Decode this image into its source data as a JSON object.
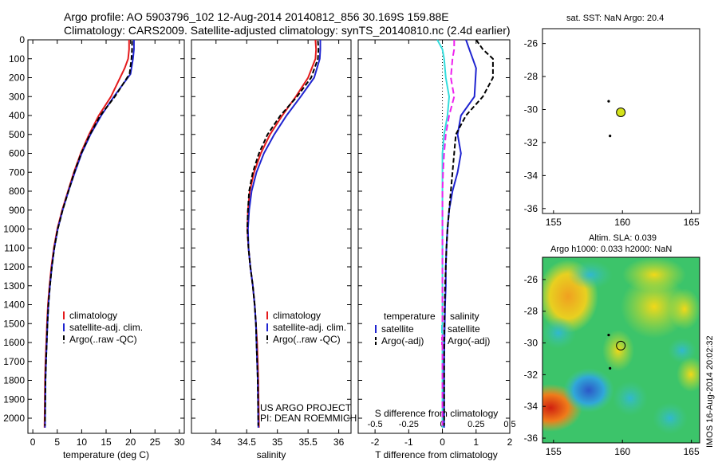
{
  "header": {
    "line1": "Argo profile: AO 5903796_102 12-Aug-2014 20140812_856 30.169S 159.88E",
    "line2": "Climatology: CARS2009. Satellite-adjusted climatology: synTS_20140810.nc (2.4d earlier)"
  },
  "colors": {
    "climatology": "#e41a1c",
    "satellite": "#1f24d0",
    "argo": "#000000",
    "satellite_s": "#33dddd",
    "argo_s": "#ee22ee",
    "marker": "#d4e21a"
  },
  "credits": {
    "project": "US ARGO PROJECT",
    "pi": "PI: DEAN ROEMMICH"
  },
  "timestamp": "IMOS 16-Aug-2014 20:02:32",
  "chart_data": [
    {
      "id": "temperature",
      "type": "line",
      "xlabel": "temperature (deg C)",
      "ylabel": "",
      "xlim": [
        -1,
        31
      ],
      "ylim": [
        2080,
        0
      ],
      "xticks": [
        0,
        5,
        10,
        15,
        20,
        25,
        30
      ],
      "yticks": [
        0,
        100,
        200,
        300,
        400,
        500,
        600,
        700,
        800,
        900,
        1000,
        1100,
        1200,
        1300,
        1400,
        1500,
        1600,
        1700,
        1800,
        1900,
        2000
      ],
      "legend": [
        "climatology",
        "satellite-adj. clim.",
        "Argo(..raw -QC)"
      ],
      "series": [
        {
          "name": "climatology",
          "color": "#e41a1c",
          "x": [
            19.7,
            19.7,
            19.5,
            18.8,
            16.0,
            13.5,
            11.5,
            9.8,
            8.4,
            7.2,
            6.0,
            5.0,
            4.3,
            3.8,
            3.4,
            3.1,
            2.9,
            2.75,
            2.6,
            2.5,
            2.4
          ],
          "y": [
            0,
            50,
            100,
            150,
            300,
            400,
            500,
            600,
            700,
            800,
            900,
            1000,
            1100,
            1200,
            1300,
            1400,
            1500,
            1600,
            1700,
            1800,
            2050
          ]
        },
        {
          "name": "satellite-adj. clim.",
          "color": "#1f24d0",
          "x": [
            20.7,
            20.7,
            20.5,
            20.0,
            16.6,
            14.0,
            11.8,
            10.0,
            8.6,
            7.3,
            6.1,
            5.1,
            4.4,
            3.9,
            3.5,
            3.2,
            3.0,
            2.85,
            2.7,
            2.6,
            2.5
          ],
          "y": [
            0,
            50,
            100,
            180,
            300,
            400,
            500,
            600,
            700,
            800,
            900,
            1000,
            1100,
            1200,
            1300,
            1400,
            1500,
            1600,
            1700,
            1800,
            2050
          ]
        },
        {
          "name": "Argo(..raw -QC)",
          "color": "#000000",
          "x": [
            20.3,
            20.3,
            20.2,
            19.8,
            16.8,
            13.8,
            11.7,
            9.9,
            8.5,
            7.3,
            6.1,
            5.1,
            4.4,
            3.9,
            3.5,
            3.2,
            3.0,
            2.85,
            2.7,
            2.6,
            2.5
          ],
          "y": [
            5,
            50,
            100,
            180,
            300,
            400,
            500,
            600,
            700,
            800,
            900,
            1000,
            1100,
            1200,
            1300,
            1400,
            1500,
            1600,
            1700,
            1800,
            2040
          ]
        }
      ]
    },
    {
      "id": "salinity",
      "type": "line",
      "xlabel": "salinity",
      "xlim": [
        33.6,
        36.2
      ],
      "ylim": [
        2080,
        0
      ],
      "xticks": [
        34,
        34.5,
        35,
        35.5,
        36
      ],
      "legend": [
        "climatology",
        "satellite-adj. clim.",
        "Argo(..raw -QC)"
      ],
      "series": [
        {
          "name": "climatology",
          "color": "#e41a1c",
          "x": [
            35.62,
            35.63,
            35.62,
            35.5,
            35.3,
            35.08,
            34.88,
            34.73,
            34.62,
            34.55,
            34.52,
            34.51,
            34.53,
            34.56,
            34.6,
            34.63,
            34.65,
            34.67,
            34.68,
            34.69,
            34.7
          ],
          "y": [
            0,
            50,
            100,
            200,
            300,
            400,
            500,
            600,
            700,
            800,
            900,
            1000,
            1100,
            1200,
            1300,
            1400,
            1500,
            1600,
            1700,
            1800,
            2050
          ]
        },
        {
          "name": "satellite-adj. clim.",
          "color": "#1f24d0",
          "x": [
            35.7,
            35.7,
            35.69,
            35.6,
            35.38,
            35.15,
            34.95,
            34.78,
            34.66,
            34.58,
            34.54,
            34.52,
            34.53,
            34.56,
            34.6,
            34.63,
            34.65,
            34.66,
            34.67,
            34.68,
            34.69
          ],
          "y": [
            0,
            50,
            100,
            200,
            300,
            400,
            500,
            600,
            700,
            800,
            900,
            1000,
            1100,
            1200,
            1300,
            1400,
            1500,
            1600,
            1700,
            1800,
            2050
          ]
        },
        {
          "name": "Argo(..raw -QC)",
          "color": "#000000",
          "x": [
            35.66,
            35.67,
            35.66,
            35.55,
            35.32,
            35.05,
            34.84,
            34.7,
            34.6,
            34.54,
            34.52,
            34.51,
            34.53,
            34.56,
            34.6,
            34.63,
            34.65,
            34.66,
            34.67,
            34.68,
            34.69
          ],
          "y": [
            5,
            50,
            100,
            200,
            300,
            400,
            500,
            600,
            700,
            800,
            900,
            1000,
            1100,
            1200,
            1300,
            1400,
            1500,
            1600,
            1700,
            1800,
            2040
          ]
        }
      ]
    },
    {
      "id": "difference",
      "type": "line",
      "xlabel": "T difference from climatology",
      "x2label": "S difference from climatology",
      "xlim": [
        -2.5,
        2
      ],
      "ylim": [
        2080,
        0
      ],
      "xticks": [
        -2,
        -1,
        0,
        1,
        2
      ],
      "xticklabels": [
        "-2",
        "-1",
        "0",
        "1",
        "2"
      ],
      "x2ticks": [
        -2,
        -1,
        0,
        1,
        2
      ],
      "x2ticklabels": [
        "-0.5",
        "-0.25",
        "0",
        "0.25",
        "0.5"
      ],
      "legend_groups": [
        {
          "title": "temperature",
          "items": [
            "satellite",
            "Argo(-adj)"
          ]
        },
        {
          "title": "salinity",
          "items": [
            "satellite",
            "Argo(-adj)"
          ]
        }
      ],
      "series": [
        {
          "name": "satellite",
          "group": "temperature",
          "color": "#1f24d0",
          "x": [
            0.7,
            0.8,
            0.9,
            1.0,
            0.95,
            0.55,
            0.45,
            0.55,
            0.45,
            0.3,
            0.2,
            0.15,
            0.12,
            0.1,
            0.1,
            0.08,
            0.07,
            0.06,
            0.05,
            0.05,
            0.05
          ],
          "y": [
            0,
            50,
            100,
            150,
            300,
            400,
            500,
            600,
            700,
            800,
            900,
            1000,
            1100,
            1200,
            1300,
            1400,
            1500,
            1600,
            1700,
            1800,
            2050
          ]
        },
        {
          "name": "Argo(-adj)",
          "group": "temperature",
          "color": "#000000",
          "x": [
            1.0,
            1.2,
            1.5,
            1.5,
            1.2,
            0.7,
            0.4,
            0.35,
            0.3,
            0.25,
            0.2,
            0.15,
            0.12,
            0.1,
            0.08,
            0.07,
            0.06,
            0.05,
            0.05,
            0.05
          ],
          "y": [
            0,
            50,
            100,
            200,
            300,
            400,
            500,
            600,
            700,
            800,
            900,
            1000,
            1100,
            1200,
            1300,
            1400,
            1500,
            1600,
            1700,
            2040
          ]
        },
        {
          "name": "satellite",
          "group": "salinity",
          "color": "#33dddd",
          "x": [
            -0.15,
            0.0,
            0.05,
            0.1,
            0.2,
            0.15,
            0.05,
            0.0,
            0.0,
            0.0,
            0.0,
            0.0,
            0.0,
            0.0,
            0.0,
            0.0,
            0.0,
            0.0,
            0.0,
            0.0,
            0.0
          ],
          "y": [
            0,
            50,
            100,
            200,
            300,
            400,
            500,
            600,
            700,
            800,
            900,
            1000,
            1100,
            1200,
            1300,
            1400,
            1500,
            1600,
            1700,
            1800,
            2050
          ]
        },
        {
          "name": "Argo(-adj)",
          "group": "salinity",
          "color": "#ee22ee",
          "x": [
            0.35,
            0.35,
            0.3,
            0.25,
            0.35,
            0.2,
            0.1,
            0.05,
            0.02,
            0.0,
            0.0,
            0.0,
            0.0,
            0.0,
            0.0,
            0.0,
            0.0,
            0.0,
            0.0,
            0.0
          ],
          "y": [
            0,
            50,
            100,
            200,
            300,
            400,
            500,
            600,
            700,
            800,
            900,
            1000,
            1100,
            1200,
            1300,
            1400,
            1500,
            1600,
            1700,
            2040
          ]
        }
      ]
    },
    {
      "id": "sst-map",
      "type": "scatter",
      "title": "sat. SST: NaN Argo: 20.4",
      "xlim": [
        154.2,
        165.6
      ],
      "ylim": [
        -36.3,
        -25.1
      ],
      "xticks": [
        155,
        160,
        165
      ],
      "yticks": [
        -26,
        -28,
        -30,
        -32,
        -34,
        -36
      ],
      "track": [
        {
          "x": 159.0,
          "y": -29.5
        },
        {
          "x": 159.1,
          "y": -31.6
        }
      ],
      "profile_location": {
        "x": 159.88,
        "y": -30.169
      }
    },
    {
      "id": "sla-map",
      "type": "heatmap",
      "title": "Altim. SLA: 0.039",
      "subtitle": "Argo h1000: 0.033 h2000: NaN",
      "xlim": [
        154.2,
        165.6
      ],
      "ylim": [
        -36.3,
        -24.6
      ],
      "xticks": [
        155,
        160,
        165
      ],
      "yticks": [
        -26,
        -28,
        -30,
        -32,
        -34,
        -36
      ],
      "track": [
        {
          "x": 159.0,
          "y": -29.5
        },
        {
          "x": 159.1,
          "y": -31.6
        }
      ],
      "profile_location": {
        "x": 159.88,
        "y": -30.169
      }
    }
  ]
}
